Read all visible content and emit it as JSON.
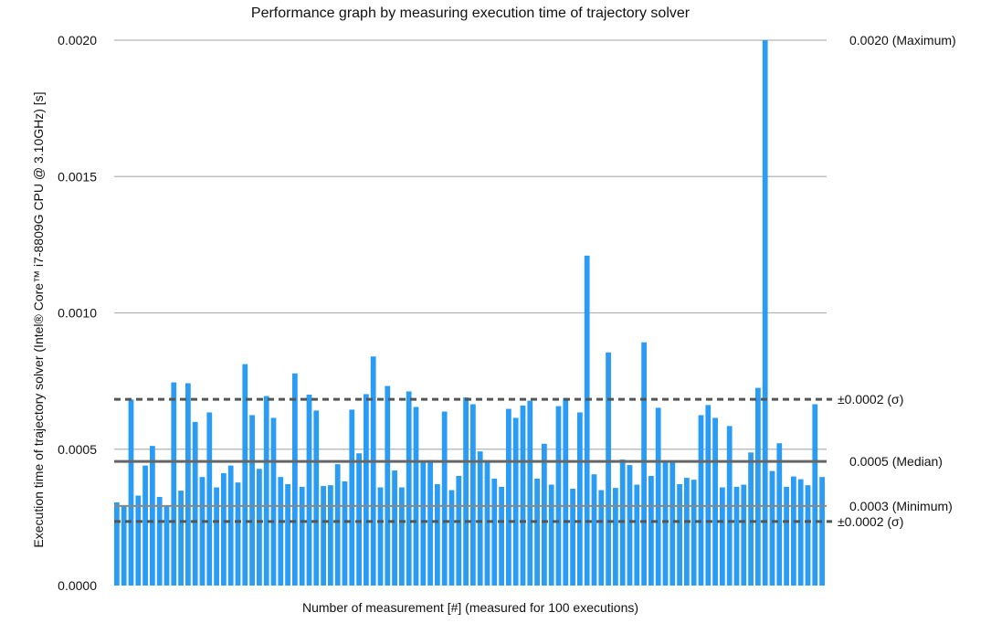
{
  "chart_data": {
    "type": "bar",
    "title": "Performance graph by measuring execution time of trajectory solver",
    "xlabel": "Number of measurement [#] (measured for 100 executions)",
    "ylabel": "Execution time of trajectory solver (Intel® Core™ i7-8809G CPU @ 3.10GHz)  [s]",
    "ylim": [
      0,
      0.002
    ],
    "yticks": [
      "0.0000",
      "0.0005",
      "0.0010",
      "0.0015",
      "0.0020"
    ],
    "grid": true,
    "bar_color": "#2b9cf3",
    "values": [
      0.000305,
      0.000295,
      0.000682,
      0.00033,
      0.00044,
      0.000512,
      0.000325,
      0.000292,
      0.000745,
      0.000348,
      0.000742,
      0.0006,
      0.000398,
      0.000635,
      0.00036,
      0.000412,
      0.00044,
      0.000378,
      0.000812,
      0.000625,
      0.000428,
      0.000695,
      0.000615,
      0.000398,
      0.000372,
      0.000778,
      0.000362,
      0.0007,
      0.000642,
      0.000365,
      0.000368,
      0.000445,
      0.000382,
      0.000645,
      0.000485,
      0.000702,
      0.00084,
      0.00036,
      0.000732,
      0.000422,
      0.00036,
      0.000712,
      0.000655,
      0.000455,
      0.00046,
      0.000372,
      0.000638,
      0.00035,
      0.000402,
      0.00069,
      0.000665,
      0.000492,
      0.00046,
      0.000392,
      0.000362,
      0.000648,
      0.000615,
      0.00066,
      0.000678,
      0.000392,
      0.00052,
      0.00037,
      0.000658,
      0.000688,
      0.000355,
      0.000635,
      0.00121,
      0.000408,
      0.00035,
      0.000855,
      0.000358,
      0.000462,
      0.000442,
      0.00037,
      0.000892,
      0.000402,
      0.000652,
      0.000458,
      0.000458,
      0.000372,
      0.000395,
      0.000388,
      0.000625,
      0.000662,
      0.000615,
      0.00036,
      0.000585,
      0.000362,
      0.00037,
      0.000488,
      0.000725,
      0.002,
      0.00042,
      0.000522,
      0.000362,
      0.0004,
      0.00039,
      0.000368,
      0.000665,
      0.000398
    ],
    "reference_lines": [
      {
        "label": "0.0020 (Maximum)",
        "value": 0.002,
        "style": "solid-light"
      },
      {
        "label": "±0.0002 (σ)",
        "value": 0.000683,
        "style": "dashed"
      },
      {
        "label": "0.0005 (Median)",
        "value": 0.000455,
        "style": "solid-dark"
      },
      {
        "label": "0.0003 (Minimum)",
        "value": 0.000292,
        "style": "solid-mid"
      },
      {
        "label": "±0.0002 (σ)",
        "value": 0.000235,
        "style": "dashed"
      }
    ]
  }
}
